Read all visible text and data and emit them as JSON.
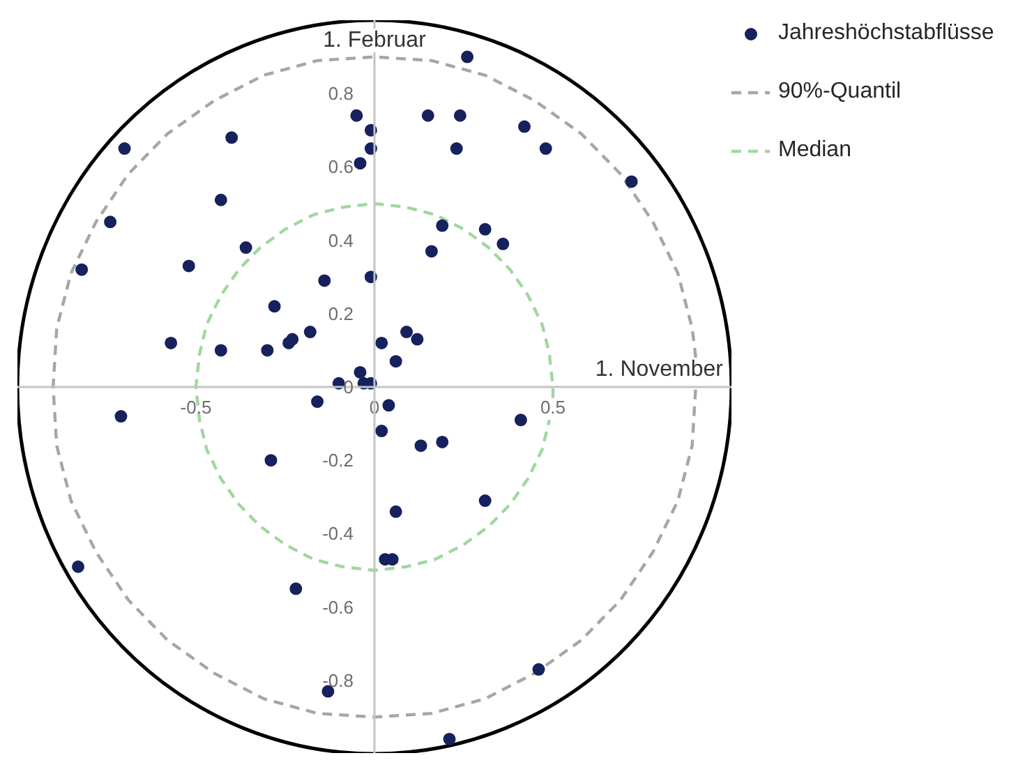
{
  "chart_data": {
    "type": "scatter",
    "xlim": [
      -1,
      1
    ],
    "ylim": [
      -1,
      1
    ],
    "xticks": [
      -0.5,
      0,
      0.5
    ],
    "yticks": [
      -0.8,
      -0.6,
      -0.4,
      -0.2,
      0,
      0.2,
      0.4,
      0.6,
      0.8
    ],
    "grid": false,
    "legend": "top right",
    "annotations": [
      "1. Februar",
      "1. November"
    ],
    "series": [
      {
        "name": "Jahreshöchstabflüsse",
        "color": "#16215e",
        "marker": "circle",
        "x": [
          -0.05,
          -0.01,
          -0.01,
          -0.04,
          -0.7,
          -0.4,
          -0.43,
          -0.74,
          -0.36,
          -0.82,
          -0.52,
          -0.14,
          -0.01,
          -0.28,
          -0.57,
          -0.43,
          -0.3,
          -0.24,
          -0.23,
          -0.18,
          0.02,
          -0.1,
          -0.04,
          -0.03,
          -0.01,
          0.26,
          0.15,
          0.24,
          0.42,
          0.23,
          0.48,
          0.72,
          0.19,
          0.31,
          0.36,
          0.16,
          0.09,
          0.12,
          0.06,
          -0.16,
          -0.71,
          0.02,
          0.04,
          -0.29,
          -0.83,
          -0.22,
          -0.13,
          0.03,
          0.05,
          0.41,
          0.13,
          0.19,
          0.31,
          0.06,
          0.46,
          0.21
        ],
        "values": [
          0.74,
          0.7,
          0.65,
          0.61,
          0.65,
          0.68,
          0.51,
          0.45,
          0.38,
          0.32,
          0.33,
          0.29,
          0.3,
          0.22,
          0.12,
          0.1,
          0.1,
          0.12,
          0.13,
          0.15,
          0.12,
          0.01,
          0.04,
          0.01,
          0.01,
          0.9,
          0.74,
          0.74,
          0.71,
          0.65,
          0.65,
          0.56,
          0.44,
          0.43,
          0.39,
          0.37,
          0.15,
          0.13,
          0.07,
          -0.04,
          -0.08,
          -0.12,
          -0.05,
          -0.2,
          -0.49,
          -0.55,
          -0.83,
          -0.47,
          -0.47,
          -0.09,
          -0.16,
          -0.15,
          -0.31,
          -0.34,
          -0.77,
          -0.96
        ]
      },
      {
        "name": "90%-Quantil",
        "type": "line",
        "color": "#a6a6a6",
        "line_style": "dashed",
        "x": [
          0.9,
          0.89,
          0.85,
          0.78,
          0.69,
          0.58,
          0.45,
          0.31,
          0.16,
          0,
          -0.16,
          -0.31,
          -0.45,
          -0.58,
          -0.69,
          -0.78,
          -0.85,
          -0.89,
          -0.9,
          -0.89,
          -0.85,
          -0.78,
          -0.69,
          -0.58,
          -0.45,
          -0.31,
          -0.16,
          0,
          0.16,
          0.31,
          0.45,
          0.58,
          0.69,
          0.78,
          0.85,
          0.89,
          0.9
        ],
        "values": [
          0.08,
          0.16,
          0.31,
          0.45,
          0.58,
          0.69,
          0.78,
          0.85,
          0.89,
          0.9,
          0.89,
          0.85,
          0.78,
          0.69,
          0.58,
          0.45,
          0.31,
          0.16,
          0,
          -0.16,
          -0.31,
          -0.45,
          -0.58,
          -0.69,
          -0.78,
          -0.85,
          -0.89,
          -0.9,
          -0.89,
          -0.85,
          -0.78,
          -0.69,
          -0.58,
          -0.45,
          -0.31,
          -0.16,
          0
        ]
      },
      {
        "name": "Median",
        "type": "line",
        "color": "#a0d89e",
        "line_style": "dashed",
        "x": [
          0.5,
          0.5,
          0.49,
          0.47,
          0.43,
          0.38,
          0.32,
          0.25,
          0.17,
          0.09,
          0,
          -0.09,
          -0.17,
          -0.25,
          -0.32,
          -0.38,
          -0.43,
          -0.47,
          -0.49,
          -0.5,
          -0.49,
          -0.47,
          -0.43,
          -0.38,
          -0.32,
          -0.25,
          -0.17,
          -0.09,
          0,
          0.09,
          0.17,
          0.25,
          0.32,
          0.38,
          0.43,
          0.47,
          0.49
        ],
        "values": [
          -0.03,
          0,
          0.09,
          0.17,
          0.25,
          0.32,
          0.38,
          0.43,
          0.47,
          0.49,
          0.5,
          0.49,
          0.47,
          0.43,
          0.38,
          0.32,
          0.25,
          0.17,
          0.09,
          0,
          -0.09,
          -0.17,
          -0.25,
          -0.32,
          -0.38,
          -0.43,
          -0.47,
          -0.49,
          -0.5,
          -0.49,
          -0.47,
          -0.43,
          -0.38,
          -0.32,
          -0.25,
          -0.17,
          -0.09
        ]
      }
    ]
  }
}
